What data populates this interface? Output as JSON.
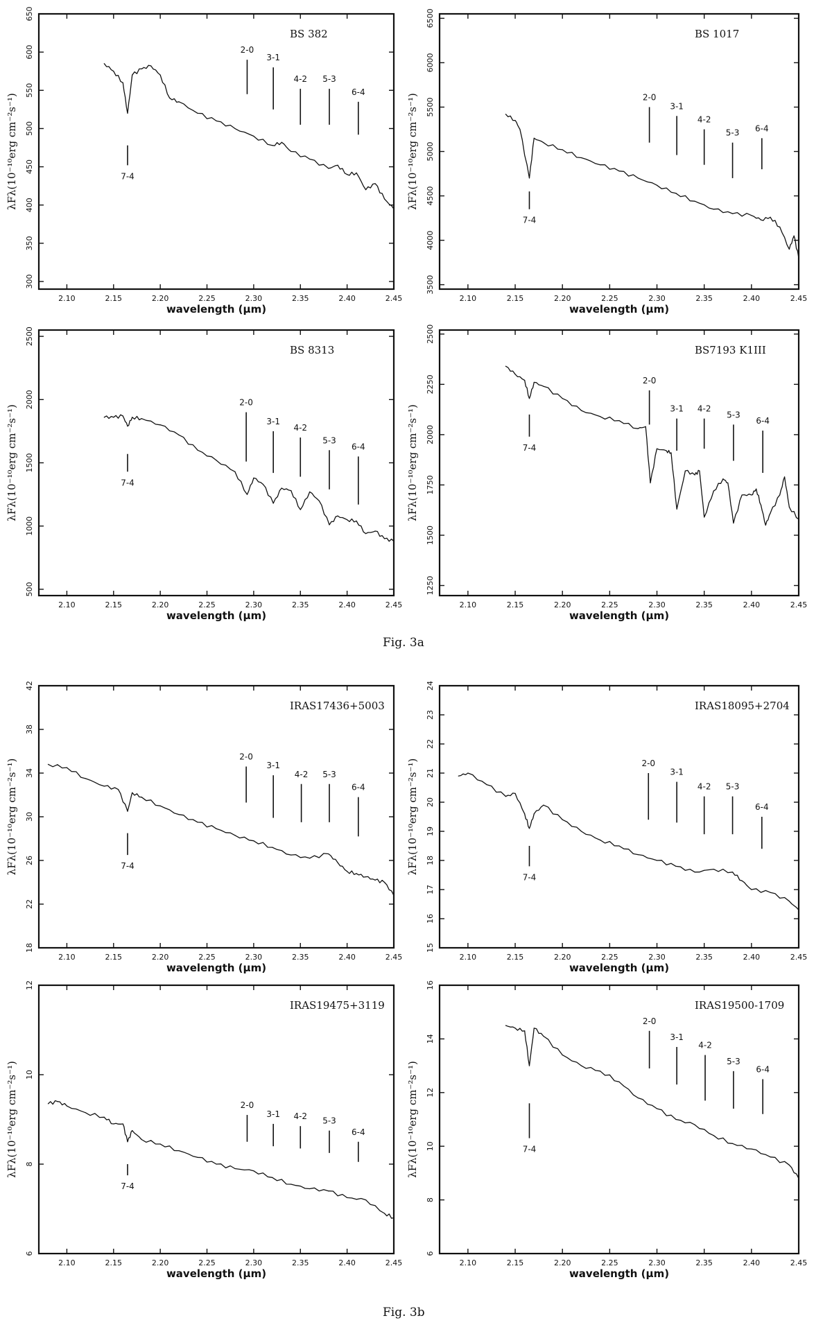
{
  "figure_captions": {
    "fig3a": "Fig. 3a",
    "fig3b": "Fig. 3b"
  },
  "chart_data": [
    {
      "type": "line",
      "title": "BS 382",
      "xlabel": "wavelength (μm)",
      "ylabel": "λFλ(10⁻¹⁰erg cm⁻²s⁻¹)",
      "xlim": [
        2.07,
        2.45
      ],
      "ylim": [
        290,
        650
      ],
      "xticks": [
        2.1,
        2.15,
        2.2,
        2.25,
        2.3,
        2.35,
        2.4,
        2.45
      ],
      "yticks": [
        300,
        350,
        400,
        450,
        500,
        550,
        600,
        650
      ],
      "series": [
        {
          "x": [
            2.14,
            2.15,
            2.16,
            2.165,
            2.17,
            2.18,
            2.19,
            2.2,
            2.21,
            2.22,
            2.24,
            2.26,
            2.28,
            2.3,
            2.32,
            2.33,
            2.34,
            2.36,
            2.38,
            2.39,
            2.4,
            2.41,
            2.42,
            2.43,
            2.44,
            2.45
          ],
          "y": [
            585,
            575,
            560,
            520,
            570,
            578,
            582,
            570,
            540,
            535,
            520,
            510,
            500,
            490,
            478,
            482,
            470,
            460,
            448,
            452,
            440,
            442,
            420,
            428,
            408,
            395
          ]
        }
      ],
      "annotations": [
        {
          "label": "2-0",
          "x": 2.293,
          "y_top": 590,
          "y_bottom": 545,
          "label_pos": "above"
        },
        {
          "label": "3-1",
          "x": 2.321,
          "y_top": 580,
          "y_bottom": 525,
          "label_pos": "above"
        },
        {
          "label": "4-2",
          "x": 2.35,
          "y_top": 552,
          "y_bottom": 505,
          "label_pos": "above"
        },
        {
          "label": "5-3",
          "x": 2.381,
          "y_top": 552,
          "y_bottom": 505,
          "label_pos": "above"
        },
        {
          "label": "6-4",
          "x": 2.412,
          "y_top": 535,
          "y_bottom": 492,
          "label_pos": "above"
        },
        {
          "label": "7-4",
          "x": 2.165,
          "y_top": 478,
          "y_bottom": 452,
          "label_pos": "below"
        }
      ]
    },
    {
      "type": "line",
      "title": "BS 1017",
      "xlabel": "wavelength (μm)",
      "ylabel": "λFλ(10⁻¹⁰erg cm⁻²s⁻¹)",
      "xlim": [
        2.07,
        2.45
      ],
      "ylim": [
        3450,
        6550
      ],
      "xticks": [
        2.1,
        2.15,
        2.2,
        2.25,
        2.3,
        2.35,
        2.4,
        2.45
      ],
      "yticks": [
        3500,
        4000,
        4500,
        5000,
        5500,
        6000,
        6500
      ],
      "series": [
        {
          "x": [
            2.14,
            2.15,
            2.155,
            2.165,
            2.17,
            2.18,
            2.2,
            2.22,
            2.24,
            2.26,
            2.28,
            2.3,
            2.32,
            2.34,
            2.36,
            2.38,
            2.4,
            2.41,
            2.42,
            2.43,
            2.44,
            2.445,
            2.45
          ],
          "y": [
            5420,
            5350,
            5250,
            4700,
            5150,
            5100,
            5020,
            4930,
            4850,
            4780,
            4700,
            4620,
            4530,
            4440,
            4350,
            4300,
            4280,
            4230,
            4260,
            4150,
            3900,
            4050,
            3800
          ]
        }
      ],
      "annotations": [
        {
          "label": "2-0",
          "x": 2.292,
          "y_top": 5500,
          "y_bottom": 5100,
          "label_pos": "above"
        },
        {
          "label": "3-1",
          "x": 2.321,
          "y_top": 5400,
          "y_bottom": 4960,
          "label_pos": "above"
        },
        {
          "label": "4-2",
          "x": 2.35,
          "y_top": 5250,
          "y_bottom": 4850,
          "label_pos": "above"
        },
        {
          "label": "5-3",
          "x": 2.38,
          "y_top": 5100,
          "y_bottom": 4700,
          "label_pos": "above"
        },
        {
          "label": "6-4",
          "x": 2.411,
          "y_top": 5150,
          "y_bottom": 4800,
          "label_pos": "above"
        },
        {
          "label": "7-4",
          "x": 2.165,
          "y_top": 4550,
          "y_bottom": 4350,
          "label_pos": "below"
        }
      ]
    },
    {
      "type": "line",
      "title": "BS 8313",
      "xlabel": "wavelength (μm)",
      "ylabel": "λFλ(10⁻¹⁰erg cm⁻²s⁻¹)",
      "xlim": [
        2.07,
        2.45
      ],
      "ylim": [
        450,
        2550
      ],
      "xticks": [
        2.1,
        2.15,
        2.2,
        2.25,
        2.3,
        2.35,
        2.4,
        2.45
      ],
      "yticks": [
        500,
        1000,
        1500,
        2000,
        2500
      ],
      "series": [
        {
          "x": [
            2.14,
            2.15,
            2.16,
            2.165,
            2.17,
            2.18,
            2.2,
            2.22,
            2.24,
            2.26,
            2.28,
            2.293,
            2.3,
            2.31,
            2.321,
            2.33,
            2.34,
            2.35,
            2.36,
            2.37,
            2.381,
            2.39,
            2.4,
            2.41,
            2.42,
            2.43,
            2.44,
            2.45
          ],
          "y": [
            1860,
            1860,
            1870,
            1790,
            1860,
            1850,
            1800,
            1720,
            1600,
            1520,
            1430,
            1250,
            1380,
            1330,
            1180,
            1300,
            1280,
            1130,
            1270,
            1200,
            1010,
            1080,
            1050,
            1040,
            940,
            960,
            900,
            880
          ]
        }
      ],
      "annotations": [
        {
          "label": "2-0",
          "x": 2.292,
          "y_top": 1900,
          "y_bottom": 1510,
          "label_pos": "above"
        },
        {
          "label": "3-1",
          "x": 2.321,
          "y_top": 1750,
          "y_bottom": 1420,
          "label_pos": "above"
        },
        {
          "label": "4-2",
          "x": 2.35,
          "y_top": 1700,
          "y_bottom": 1390,
          "label_pos": "above"
        },
        {
          "label": "5-3",
          "x": 2.381,
          "y_top": 1600,
          "y_bottom": 1290,
          "label_pos": "above"
        },
        {
          "label": "6-4",
          "x": 2.412,
          "y_top": 1550,
          "y_bottom": 1170,
          "label_pos": "above"
        },
        {
          "label": "7-4",
          "x": 2.165,
          "y_top": 1570,
          "y_bottom": 1430,
          "label_pos": "below"
        }
      ]
    },
    {
      "type": "line",
      "title": "BS7193  K1III",
      "xlabel": "wavelength (μm)",
      "ylabel": "λFλ(10⁻¹⁰erg cm⁻²s⁻¹)",
      "xlim": [
        2.07,
        2.45
      ],
      "ylim": [
        1200,
        2520
      ],
      "xticks": [
        2.1,
        2.15,
        2.2,
        2.25,
        2.3,
        2.35,
        2.4,
        2.45
      ],
      "yticks": [
        1250,
        1500,
        1750,
        2000,
        2250,
        2500
      ],
      "series": [
        {
          "x": [
            2.14,
            2.15,
            2.16,
            2.165,
            2.17,
            2.18,
            2.2,
            2.22,
            2.24,
            2.26,
            2.28,
            2.288,
            2.293,
            2.3,
            2.31,
            2.315,
            2.321,
            2.33,
            2.34,
            2.345,
            2.35,
            2.36,
            2.37,
            2.375,
            2.381,
            2.39,
            2.4,
            2.405,
            2.41,
            2.415,
            2.42,
            2.43,
            2.435,
            2.44,
            2.45
          ],
          "y": [
            2340,
            2300,
            2270,
            2180,
            2260,
            2240,
            2180,
            2120,
            2090,
            2070,
            2030,
            2040,
            1760,
            1930,
            1920,
            1910,
            1630,
            1820,
            1800,
            1820,
            1590,
            1720,
            1780,
            1760,
            1560,
            1700,
            1700,
            1730,
            1650,
            1550,
            1610,
            1700,
            1790,
            1640,
            1580
          ]
        }
      ],
      "annotations": [
        {
          "label": "2-0",
          "x": 2.292,
          "y_top": 2220,
          "y_bottom": 2050,
          "label_pos": "above"
        },
        {
          "label": "3-1",
          "x": 2.321,
          "y_top": 2080,
          "y_bottom": 1920,
          "label_pos": "above"
        },
        {
          "label": "4-2",
          "x": 2.35,
          "y_top": 2080,
          "y_bottom": 1930,
          "label_pos": "above"
        },
        {
          "label": "5-3",
          "x": 2.381,
          "y_top": 2050,
          "y_bottom": 1870,
          "label_pos": "above"
        },
        {
          "label": "6-4",
          "x": 2.412,
          "y_top": 2020,
          "y_bottom": 1810,
          "label_pos": "above"
        },
        {
          "label": "7-4",
          "x": 2.165,
          "y_top": 2100,
          "y_bottom": 1990,
          "label_pos": "below"
        }
      ]
    },
    {
      "type": "line",
      "title": "IRAS17436+5003",
      "xlabel": "wavelength (μm)",
      "ylabel": "λFλ(10⁻¹⁰erg cm⁻²s⁻¹)",
      "xlim": [
        2.07,
        2.45
      ],
      "ylim": [
        18,
        42
      ],
      "xticks": [
        2.1,
        2.15,
        2.2,
        2.25,
        2.3,
        2.35,
        2.4,
        2.45
      ],
      "yticks": [
        18,
        22,
        26,
        30,
        34,
        38,
        42
      ],
      "series": [
        {
          "x": [
            2.08,
            2.1,
            2.12,
            2.14,
            2.155,
            2.165,
            2.17,
            2.18,
            2.2,
            2.22,
            2.24,
            2.26,
            2.28,
            2.3,
            2.32,
            2.34,
            2.36,
            2.38,
            2.39,
            2.4,
            2.41,
            2.42,
            2.43,
            2.44,
            2.45
          ],
          "y": [
            34.8,
            34.5,
            33.5,
            32.8,
            32.5,
            30.5,
            32.2,
            31.8,
            31.0,
            30.2,
            29.5,
            28.9,
            28.3,
            27.8,
            27.2,
            26.5,
            26.2,
            26.6,
            25.8,
            25.0,
            24.8,
            24.5,
            24.2,
            24.0,
            22.8
          ]
        }
      ],
      "annotations": [
        {
          "label": "2-0",
          "x": 2.292,
          "y_top": 34.6,
          "y_bottom": 31.3,
          "label_pos": "above"
        },
        {
          "label": "3-1",
          "x": 2.321,
          "y_top": 33.8,
          "y_bottom": 29.9,
          "label_pos": "above"
        },
        {
          "label": "4-2",
          "x": 2.351,
          "y_top": 33.0,
          "y_bottom": 29.5,
          "label_pos": "above"
        },
        {
          "label": "5-3",
          "x": 2.381,
          "y_top": 33.0,
          "y_bottom": 29.5,
          "label_pos": "above"
        },
        {
          "label": "6-4",
          "x": 2.412,
          "y_top": 31.8,
          "y_bottom": 28.2,
          "label_pos": "above"
        },
        {
          "label": "7-4",
          "x": 2.165,
          "y_top": 28.5,
          "y_bottom": 26.5,
          "label_pos": "below"
        }
      ]
    },
    {
      "type": "line",
      "title": "IRAS18095+2704",
      "xlabel": "wavelength (μm)",
      "ylabel": "λFλ(10⁻¹⁰erg cm⁻²s⁻¹)",
      "xlim": [
        2.07,
        2.45
      ],
      "ylim": [
        15,
        24
      ],
      "xticks": [
        2.1,
        2.15,
        2.2,
        2.25,
        2.3,
        2.35,
        2.4,
        2.45
      ],
      "yticks": [
        15,
        16,
        17,
        18,
        19,
        20,
        21,
        22,
        23,
        24
      ],
      "y_tick_labels": [
        "15",
        "16",
        "17",
        "18",
        "19",
        "20",
        "21",
        "22",
        "23",
        "24"
      ],
      "series": [
        {
          "x": [
            2.09,
            2.1,
            2.12,
            2.14,
            2.15,
            2.16,
            2.165,
            2.17,
            2.18,
            2.2,
            2.22,
            2.24,
            2.26,
            2.28,
            2.3,
            2.32,
            2.34,
            2.36,
            2.38,
            2.39,
            2.4,
            2.42,
            2.44,
            2.45
          ],
          "y": [
            20.9,
            21.0,
            20.6,
            20.2,
            20.3,
            19.6,
            19.1,
            19.6,
            19.9,
            19.4,
            19.0,
            18.7,
            18.5,
            18.2,
            18.0,
            17.8,
            17.6,
            17.7,
            17.6,
            17.3,
            17.0,
            16.9,
            16.6,
            16.3
          ]
        }
      ],
      "annotations": [
        {
          "label": "2-0",
          "x": 2.291,
          "y_top": 21.0,
          "y_bottom": 19.4,
          "label_pos": "above"
        },
        {
          "label": "3-1",
          "x": 2.321,
          "y_top": 20.7,
          "y_bottom": 19.3,
          "label_pos": "above"
        },
        {
          "label": "4-2",
          "x": 2.35,
          "y_top": 20.2,
          "y_bottom": 18.9,
          "label_pos": "above"
        },
        {
          "label": "5-3",
          "x": 2.38,
          "y_top": 20.2,
          "y_bottom": 18.9,
          "label_pos": "above"
        },
        {
          "label": "6-4",
          "x": 2.411,
          "y_top": 19.5,
          "y_bottom": 18.4,
          "label_pos": "above"
        },
        {
          "label": "7-4",
          "x": 2.165,
          "y_top": 18.5,
          "y_bottom": 17.8,
          "label_pos": "below"
        }
      ]
    },
    {
      "type": "line",
      "title": "IRAS19475+3119",
      "xlabel": "wavelength (μm)",
      "ylabel": "λFλ(10⁻¹⁰erg cm⁻²s⁻¹)",
      "xlim": [
        2.07,
        2.45
      ],
      "ylim": [
        6,
        12
      ],
      "xticks": [
        2.1,
        2.15,
        2.2,
        2.25,
        2.3,
        2.35,
        2.4,
        2.45
      ],
      "yticks": [
        6,
        8,
        10,
        12
      ],
      "series": [
        {
          "x": [
            2.08,
            2.09,
            2.1,
            2.12,
            2.14,
            2.15,
            2.16,
            2.165,
            2.17,
            2.18,
            2.2,
            2.22,
            2.24,
            2.26,
            2.28,
            2.3,
            2.32,
            2.34,
            2.36,
            2.38,
            2.4,
            2.42,
            2.44,
            2.45
          ],
          "y": [
            9.35,
            9.4,
            9.3,
            9.15,
            9.05,
            8.9,
            8.9,
            8.5,
            8.75,
            8.55,
            8.45,
            8.3,
            8.15,
            8.0,
            7.9,
            7.85,
            7.7,
            7.55,
            7.45,
            7.4,
            7.25,
            7.2,
            6.9,
            6.8
          ]
        }
      ],
      "annotations": [
        {
          "label": "2-0",
          "x": 2.293,
          "y_top": 9.1,
          "y_bottom": 8.5,
          "label_pos": "above"
        },
        {
          "label": "3-1",
          "x": 2.321,
          "y_top": 8.9,
          "y_bottom": 8.4,
          "label_pos": "above"
        },
        {
          "label": "4-2",
          "x": 2.35,
          "y_top": 8.85,
          "y_bottom": 8.35,
          "label_pos": "above"
        },
        {
          "label": "5-3",
          "x": 2.381,
          "y_top": 8.75,
          "y_bottom": 8.25,
          "label_pos": "above"
        },
        {
          "label": "6-4",
          "x": 2.412,
          "y_top": 8.5,
          "y_bottom": 8.05,
          "label_pos": "above"
        },
        {
          "label": "7-4",
          "x": 2.165,
          "y_top": 8.0,
          "y_bottom": 7.75,
          "label_pos": "below"
        }
      ]
    },
    {
      "type": "line",
      "title": "IRAS19500-1709",
      "xlabel": "wavelength (μm)",
      "ylabel": "λFλ(10⁻¹⁰erg cm⁻²s⁻¹)",
      "xlim": [
        2.07,
        2.45
      ],
      "ylim": [
        6,
        16
      ],
      "xticks": [
        2.1,
        2.15,
        2.2,
        2.25,
        2.3,
        2.35,
        2.4,
        2.45
      ],
      "yticks": [
        6,
        8,
        10,
        12,
        14,
        16
      ],
      "series": [
        {
          "x": [
            2.14,
            2.15,
            2.16,
            2.165,
            2.17,
            2.18,
            2.2,
            2.22,
            2.24,
            2.26,
            2.28,
            2.3,
            2.32,
            2.34,
            2.36,
            2.38,
            2.4,
            2.42,
            2.44,
            2.45
          ],
          "y": [
            14.5,
            14.4,
            14.3,
            13.0,
            14.4,
            14.1,
            13.4,
            13.0,
            12.8,
            12.4,
            11.8,
            11.4,
            11.0,
            10.8,
            10.4,
            10.1,
            9.9,
            9.6,
            9.3,
            8.8
          ]
        }
      ],
      "annotations": [
        {
          "label": "2-0",
          "x": 2.292,
          "y_top": 14.3,
          "y_bottom": 12.9,
          "label_pos": "above"
        },
        {
          "label": "3-1",
          "x": 2.321,
          "y_top": 13.7,
          "y_bottom": 12.3,
          "label_pos": "above"
        },
        {
          "label": "4-2",
          "x": 2.351,
          "y_top": 13.4,
          "y_bottom": 11.7,
          "label_pos": "above"
        },
        {
          "label": "5-3",
          "x": 2.381,
          "y_top": 12.8,
          "y_bottom": 11.4,
          "label_pos": "above"
        },
        {
          "label": "6-4",
          "x": 2.412,
          "y_top": 12.5,
          "y_bottom": 11.2,
          "label_pos": "above"
        },
        {
          "label": "7-4",
          "x": 2.165,
          "y_top": 11.6,
          "y_bottom": 10.3,
          "label_pos": "below"
        }
      ]
    }
  ]
}
